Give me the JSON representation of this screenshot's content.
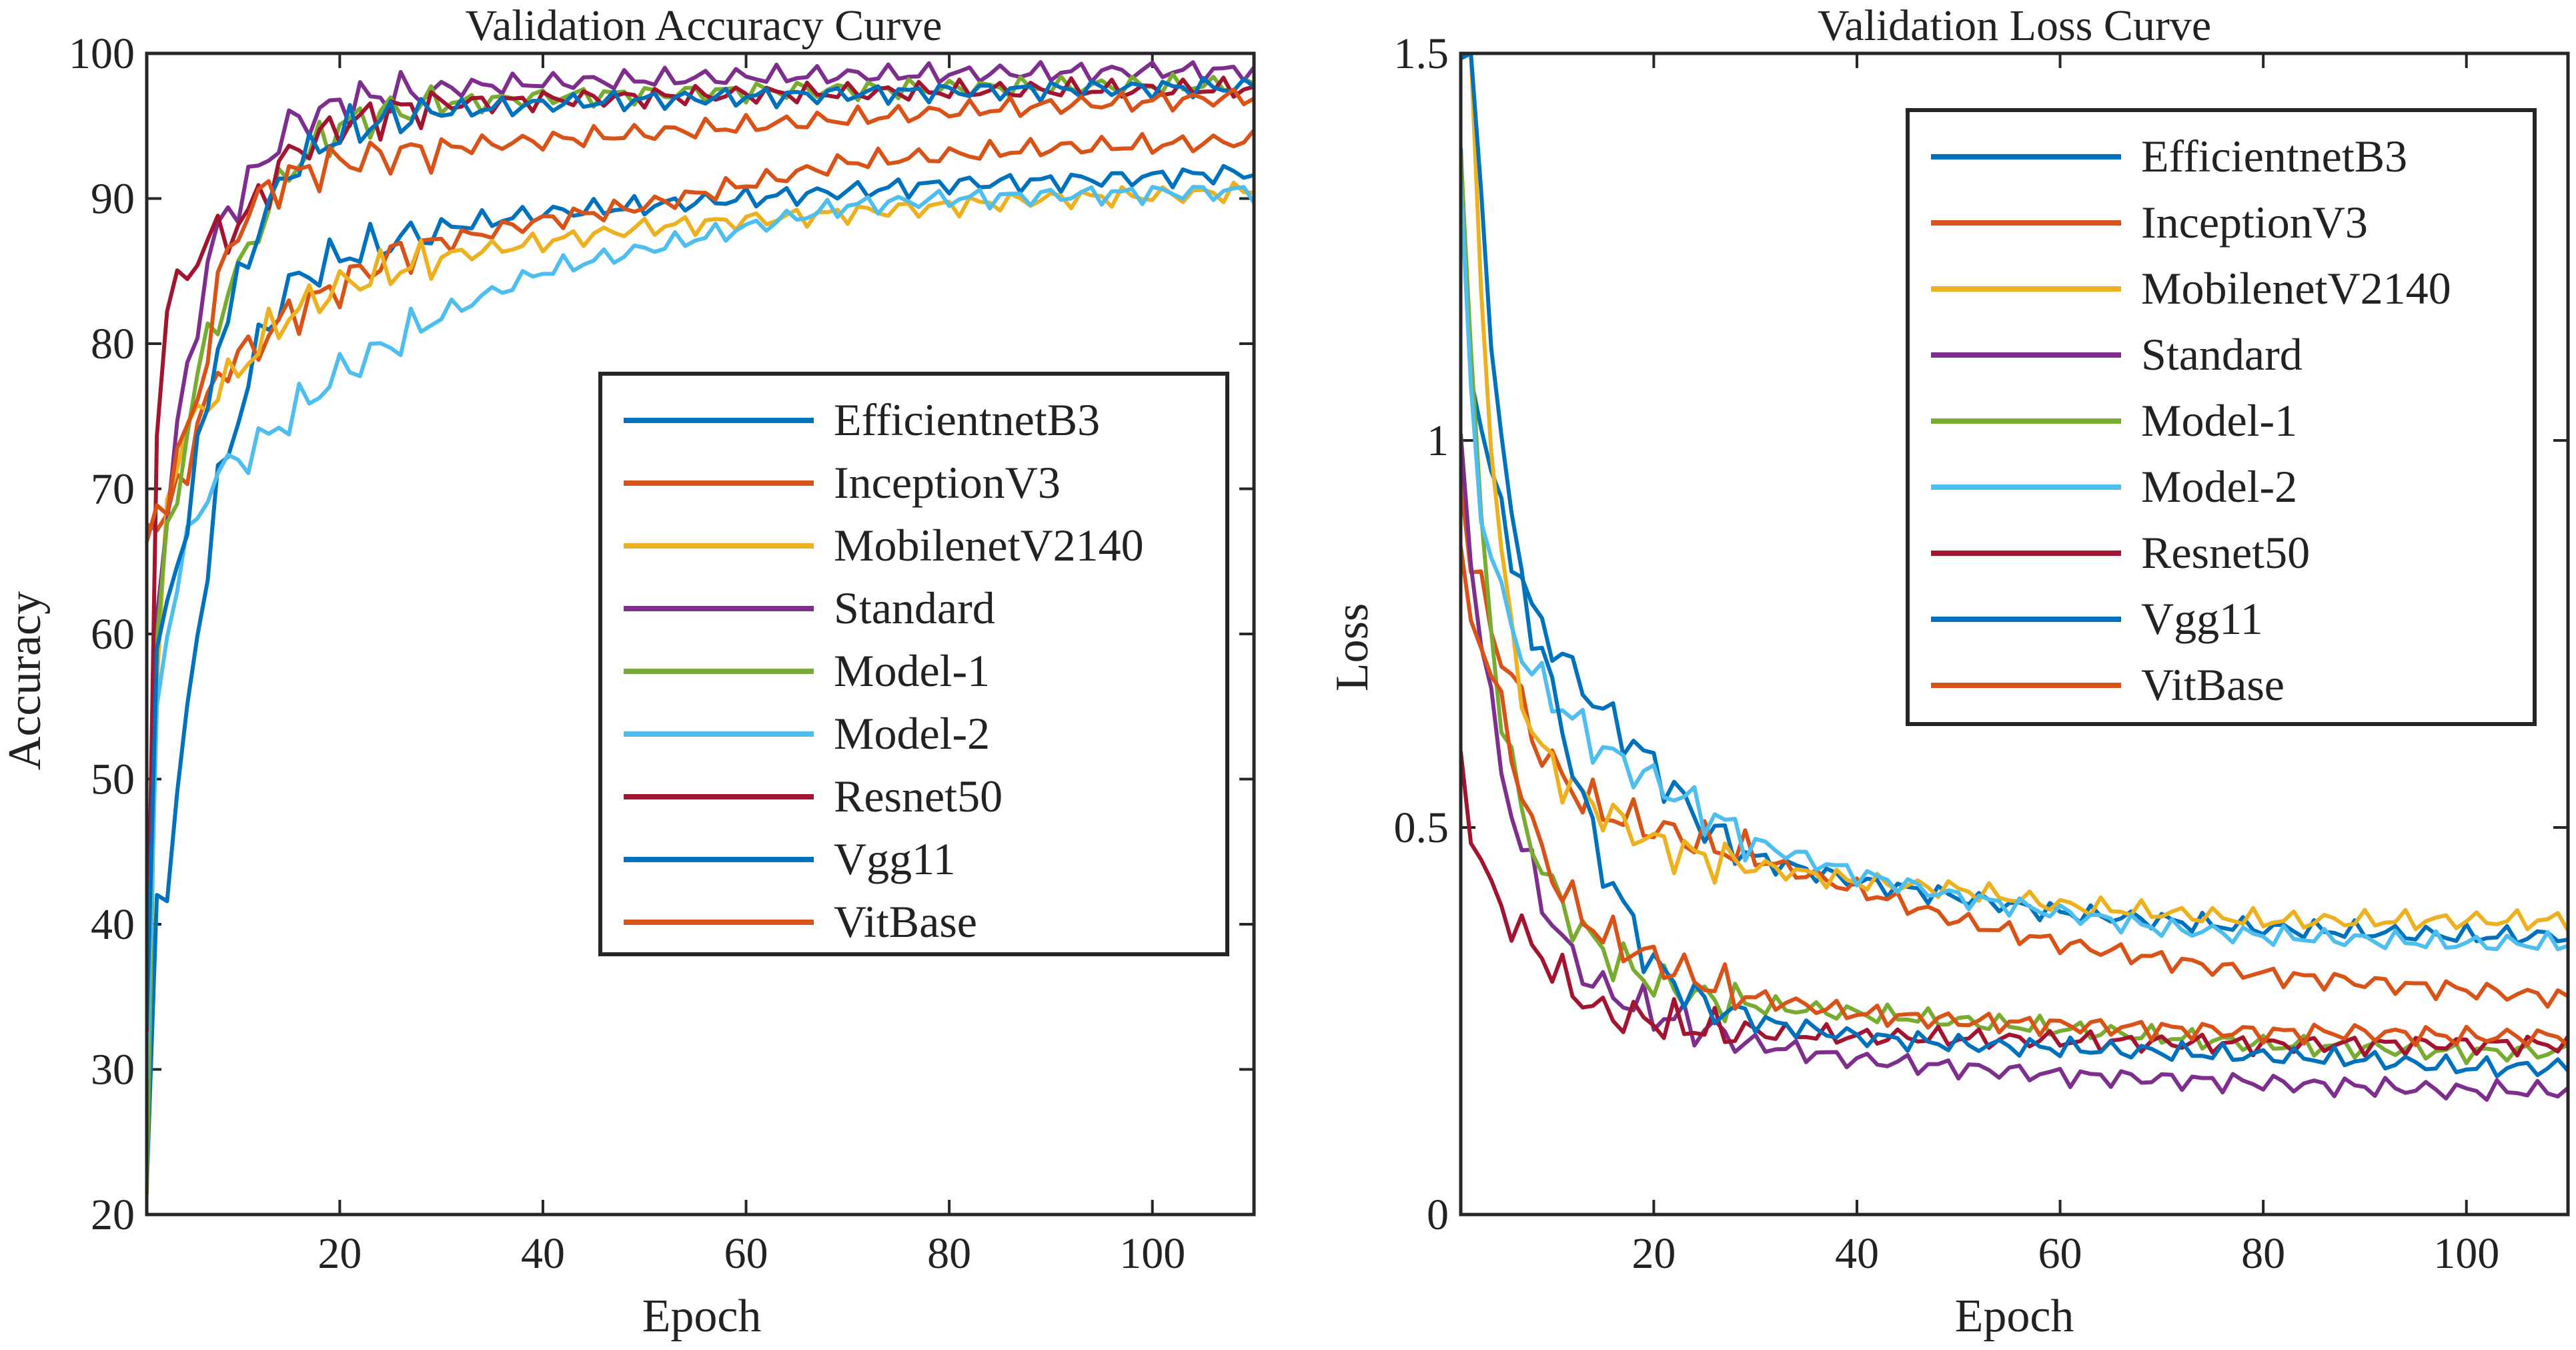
{
  "chart_data": [
    {
      "type": "line",
      "title": "Validation Accuracy Curve",
      "xlabel": "Epoch",
      "ylabel": "Accuracy",
      "xlim": [
        1,
        110
      ],
      "ylim": [
        20,
        100
      ],
      "xticks": [
        20,
        40,
        60,
        80,
        100
      ],
      "yticks": [
        20,
        30,
        40,
        50,
        60,
        70,
        80,
        90,
        100
      ],
      "legend_position": "center-right",
      "x_knots": [
        1,
        2,
        3,
        4,
        5,
        6,
        7,
        8,
        10,
        12,
        15,
        20,
        25,
        30,
        40,
        50,
        60,
        70,
        80,
        90,
        100,
        110
      ],
      "series": [
        {
          "name": "EfficientnetB3",
          "color": "#0072BD",
          "values": [
            21,
            42,
            43,
            48,
            55,
            60,
            65,
            70,
            75,
            80,
            84,
            86,
            87,
            88,
            89,
            89.5,
            90,
            90.5,
            91,
            91.2,
            91.5,
            91.8
          ]
        },
        {
          "name": "InceptionV3",
          "color": "#D95319",
          "values": [
            69,
            67,
            68,
            70,
            72,
            74,
            76,
            78,
            79,
            80,
            82,
            84,
            86,
            87,
            88.5,
            89.5,
            91,
            92.5,
            93,
            93.5,
            93.7,
            94
          ]
        },
        {
          "name": "MobilenetV2140",
          "color": "#EDB120",
          "values": [
            29,
            55,
            70,
            72,
            74,
            75,
            76,
            77,
            78,
            80,
            82,
            84,
            85,
            86,
            87,
            88,
            88.5,
            89,
            89.5,
            90,
            90.2,
            90.5
          ]
        },
        {
          "name": "Standard",
          "color": "#7E2F8E",
          "values": [
            22,
            62,
            68,
            74,
            78,
            82,
            85,
            88,
            90,
            92,
            95,
            96.5,
            97.2,
            97.6,
            98,
            98.2,
            98.4,
            98.5,
            98.6,
            98.7,
            98.8,
            98.8
          ]
        },
        {
          "name": "Model-1",
          "color": "#77AC30",
          "values": [
            22,
            60,
            66,
            70,
            74,
            78,
            80,
            82,
            85,
            88,
            92,
            95,
            96,
            96.5,
            97,
            97.2,
            97.4,
            97.5,
            97.6,
            97.7,
            97.8,
            97.8
          ]
        },
        {
          "name": "Model-2",
          "color": "#4DBEEE",
          "values": [
            28,
            55,
            60,
            64,
            66,
            68,
            70,
            71,
            72,
            73,
            75,
            78,
            80,
            82,
            85,
            86.5,
            88,
            89.5,
            90,
            90.2,
            90.4,
            90.5
          ]
        },
        {
          "name": "Resnet50",
          "color": "#A2142F",
          "values": [
            32,
            75,
            82,
            84,
            85,
            86,
            87,
            87.5,
            88,
            90,
            93,
            95,
            96,
            96.5,
            96.8,
            97,
            97.2,
            97.3,
            97.4,
            97.5,
            97.5,
            97.6
          ]
        },
        {
          "name": "Vgg11",
          "color": "#0072BD",
          "values": [
            34,
            58,
            62,
            65,
            68,
            72,
            76,
            80,
            84,
            88,
            92,
            94.5,
            95.5,
            96,
            96.5,
            96.8,
            97,
            97.2,
            97.4,
            97.5,
            97.6,
            97.7
          ]
        },
        {
          "name": "VitBase",
          "color": "#D95319",
          "values": [
            66,
            68,
            70,
            72,
            74,
            76,
            80,
            84,
            88,
            90,
            91.5,
            92.5,
            93,
            93.5,
            94,
            94.5,
            95,
            95.5,
            96,
            96.4,
            96.7,
            97
          ]
        }
      ]
    },
    {
      "type": "line",
      "title": "Validation Loss Curve",
      "xlabel": "Epoch",
      "ylabel": "Loss",
      "xlim": [
        1,
        110
      ],
      "ylim": [
        0,
        1.5
      ],
      "xticks": [
        20,
        40,
        60,
        80,
        100
      ],
      "yticks": [
        0,
        0.5,
        1,
        1.5
      ],
      "legend_position": "top-right",
      "x_knots": [
        1,
        2,
        3,
        4,
        5,
        6,
        7,
        8,
        10,
        12,
        15,
        20,
        25,
        30,
        40,
        50,
        60,
        70,
        80,
        90,
        100,
        110
      ],
      "series": [
        {
          "name": "EfficientnetB3",
          "color": "#0072BD",
          "values": [
            1.35,
            1.1,
            1.02,
            0.96,
            0.9,
            0.86,
            0.82,
            0.78,
            0.74,
            0.7,
            0.65,
            0.58,
            0.5,
            0.46,
            0.43,
            0.41,
            0.39,
            0.38,
            0.37,
            0.365,
            0.36,
            0.36
          ]
        },
        {
          "name": "InceptionV3",
          "color": "#D95319",
          "values": [
            0.95,
            0.85,
            0.8,
            0.76,
            0.72,
            0.7,
            0.66,
            0.62,
            0.58,
            0.55,
            0.52,
            0.5,
            0.48,
            0.46,
            0.42,
            0.38,
            0.35,
            0.33,
            0.31,
            0.3,
            0.29,
            0.28
          ]
        },
        {
          "name": "MobilenetV2140",
          "color": "#EDB120",
          "values": [
            1.5,
            1.5,
            1.2,
            1.0,
            0.85,
            0.75,
            0.68,
            0.62,
            0.58,
            0.55,
            0.52,
            0.48,
            0.46,
            0.45,
            0.43,
            0.42,
            0.4,
            0.39,
            0.38,
            0.38,
            0.38,
            0.38
          ]
        },
        {
          "name": "Standard",
          "color": "#7E2F8E",
          "values": [
            1.0,
            0.85,
            0.75,
            0.65,
            0.58,
            0.52,
            0.48,
            0.44,
            0.38,
            0.33,
            0.29,
            0.26,
            0.24,
            0.22,
            0.2,
            0.19,
            0.18,
            0.175,
            0.17,
            0.165,
            0.16,
            0.16
          ]
        },
        {
          "name": "Model-1",
          "color": "#77AC30",
          "values": [
            1.4,
            1.1,
            0.9,
            0.75,
            0.65,
            0.58,
            0.52,
            0.48,
            0.42,
            0.38,
            0.34,
            0.3,
            0.28,
            0.27,
            0.26,
            0.25,
            0.24,
            0.23,
            0.22,
            0.215,
            0.21,
            0.21
          ]
        },
        {
          "name": "Model-2",
          "color": "#4DBEEE",
          "values": [
            1.33,
            1.05,
            0.92,
            0.85,
            0.8,
            0.76,
            0.73,
            0.7,
            0.67,
            0.64,
            0.6,
            0.56,
            0.52,
            0.48,
            0.44,
            0.41,
            0.39,
            0.37,
            0.36,
            0.355,
            0.35,
            0.35
          ]
        },
        {
          "name": "Resnet50",
          "color": "#A2142F",
          "values": [
            0.6,
            0.5,
            0.45,
            0.42,
            0.4,
            0.38,
            0.36,
            0.35,
            0.32,
            0.29,
            0.26,
            0.25,
            0.24,
            0.235,
            0.23,
            0.228,
            0.225,
            0.222,
            0.22,
            0.22,
            0.22,
            0.22
          ]
        },
        {
          "name": "Vgg11",
          "color": "#0072BD",
          "values": [
            1.5,
            1.5,
            1.3,
            1.15,
            1.0,
            0.9,
            0.82,
            0.76,
            0.68,
            0.58,
            0.45,
            0.32,
            0.27,
            0.25,
            0.23,
            0.22,
            0.215,
            0.21,
            0.205,
            0.2,
            0.19,
            0.19
          ]
        },
        {
          "name": "VitBase",
          "color": "#D95319",
          "values": [
            0.83,
            0.78,
            0.74,
            0.7,
            0.65,
            0.6,
            0.55,
            0.5,
            0.44,
            0.4,
            0.36,
            0.33,
            0.3,
            0.28,
            0.26,
            0.25,
            0.245,
            0.24,
            0.235,
            0.235,
            0.23,
            0.23
          ]
        }
      ]
    }
  ]
}
